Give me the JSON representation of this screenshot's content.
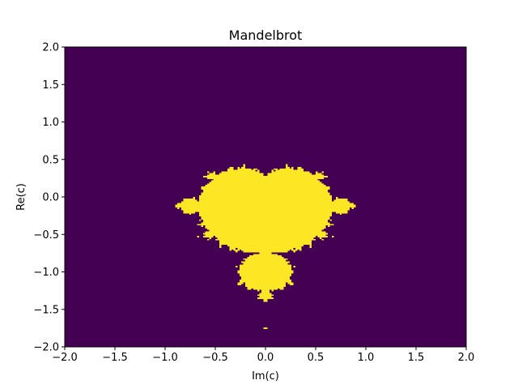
{
  "chart_data": {
    "type": "heatmap",
    "title": "Mandelbrot",
    "xlabel": "Im(c)",
    "ylabel": "Re(c)",
    "xlim": [
      -2.0,
      2.0
    ],
    "ylim": [
      -2.0,
      2.0
    ],
    "x_ticks": [
      "−2.0",
      "−1.5",
      "−1.0",
      "−0.5",
      "0.0",
      "0.5",
      "1.0",
      "1.5",
      "2.0"
    ],
    "y_ticks": [
      "2.0",
      "1.5",
      "1.0",
      "0.5",
      "0.0",
      "−0.5",
      "−1.0",
      "−1.5",
      "−2.0"
    ],
    "x_tick_values": [
      -2.0,
      -1.5,
      -1.0,
      -0.5,
      0.0,
      0.5,
      1.0,
      1.5,
      2.0
    ],
    "y_tick_values": [
      2.0,
      1.5,
      1.0,
      0.5,
      0.0,
      -0.5,
      -1.0,
      -1.5,
      -2.0
    ],
    "grid": false,
    "resolution": 200,
    "max_iterations": 50,
    "colors": {
      "inside": "#fde725",
      "outside": "#440154"
    }
  }
}
